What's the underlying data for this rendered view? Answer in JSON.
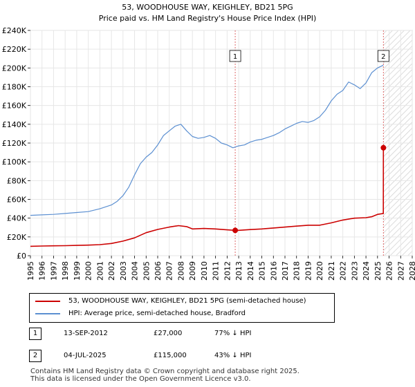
{
  "chart_data": {
    "type": "line",
    "title": "53, WOODHOUSE WAY, KEIGHLEY, BD21 5PG",
    "subtitle": "Price paid vs. HM Land Registry's House Price Index (HPI)",
    "xlabel": "",
    "ylabel": "",
    "xlim": [
      1995,
      2028
    ],
    "ylim": [
      0,
      240000
    ],
    "x_ticks": [
      1995,
      1996,
      1997,
      1998,
      1999,
      2000,
      2001,
      2002,
      2003,
      2004,
      2005,
      2006,
      2007,
      2008,
      2009,
      2010,
      2011,
      2012,
      2013,
      2014,
      2015,
      2016,
      2017,
      2018,
      2019,
      2020,
      2021,
      2022,
      2023,
      2024,
      2025,
      2026,
      2027,
      2028
    ],
    "y_ticks": [
      0,
      20000,
      40000,
      60000,
      80000,
      100000,
      120000,
      140000,
      160000,
      180000,
      200000,
      220000,
      240000
    ],
    "y_tick_labels": [
      "£0",
      "£20K",
      "£40K",
      "£60K",
      "£80K",
      "£100K",
      "£120K",
      "£140K",
      "£160K",
      "£180K",
      "£200K",
      "£220K",
      "£240K"
    ],
    "hatched_from": 2025.5,
    "series": [
      {
        "name": "53, WOODHOUSE WAY, KEIGHLEY, BD21 5PG (semi-detached house)",
        "color": "#cc0000",
        "x": [
          1995,
          1996,
          1997,
          1998,
          1999,
          2000,
          2001,
          2002,
          2003,
          2004,
          2005,
          2006,
          2007,
          2007.8,
          2008.5,
          2009,
          2010,
          2011,
          2012,
          2012.7,
          2013,
          2014,
          2015,
          2016,
          2017,
          2018,
          2019,
          2020,
          2021,
          2022,
          2023,
          2024,
          2024.5,
          2025,
          2025.5,
          2025.51
        ],
        "values": [
          10000,
          10300,
          10500,
          10700,
          11000,
          11300,
          11800,
          13000,
          15500,
          19000,
          24500,
          28000,
          30500,
          32000,
          31000,
          28500,
          29000,
          28500,
          27500,
          27000,
          27000,
          27800,
          28500,
          29500,
          30500,
          31500,
          32500,
          32500,
          35000,
          38000,
          40000,
          40500,
          41500,
          44000,
          45000,
          115000
        ]
      },
      {
        "name": "HPI: Average price, semi-detached house, Bradford",
        "color": "#5b8fd1",
        "x": [
          1995,
          1996,
          1997,
          1998,
          1999,
          2000,
          2001,
          2002,
          2002.5,
          2003,
          2003.5,
          2004,
          2004.5,
          2005,
          2005.5,
          2006,
          2006.5,
          2007,
          2007.5,
          2008,
          2008.5,
          2009,
          2009.5,
          2010,
          2010.5,
          2011,
          2011.5,
          2012,
          2012.5,
          2013,
          2013.5,
          2014,
          2014.5,
          2015,
          2015.5,
          2016,
          2016.5,
          2017,
          2017.5,
          2018,
          2018.5,
          2019,
          2019.5,
          2020,
          2020.5,
          2021,
          2021.5,
          2022,
          2022.5,
          2023,
          2023.5,
          2024,
          2024.5,
          2025,
          2025.5
        ],
        "values": [
          43000,
          43500,
          44000,
          45000,
          46000,
          47000,
          50000,
          54000,
          58000,
          64000,
          73000,
          86000,
          98000,
          105000,
          110000,
          118000,
          128000,
          133000,
          138000,
          140000,
          133000,
          127000,
          125000,
          126000,
          128000,
          125000,
          120000,
          118000,
          115000,
          117000,
          118000,
          121000,
          123000,
          124000,
          126000,
          128000,
          131000,
          135000,
          138000,
          141000,
          143000,
          142000,
          144000,
          148000,
          155000,
          165000,
          172000,
          176000,
          185000,
          182000,
          178000,
          184000,
          195000,
          200000,
          203000
        ]
      }
    ],
    "annotations": [
      {
        "label": "1",
        "x": 2012.7,
        "y": 27000
      },
      {
        "label": "2",
        "x": 2025.51,
        "y": 115000
      }
    ]
  },
  "legend": {
    "items": [
      {
        "label": "53, WOODHOUSE WAY, KEIGHLEY, BD21 5PG (semi-detached house)",
        "color": "#cc0000"
      },
      {
        "label": "HPI: Average price, semi-detached house, Bradford",
        "color": "#5b8fd1"
      }
    ]
  },
  "sales": [
    {
      "badge": "1",
      "date": "13-SEP-2012",
      "price": "£27,000",
      "hpi": "77% ↓ HPI"
    },
    {
      "badge": "2",
      "date": "04-JUL-2025",
      "price": "£115,000",
      "hpi": "43% ↓ HPI"
    }
  ],
  "footer": {
    "line1": "Contains HM Land Registry data © Crown copyright and database right 2025.",
    "line2": "This data is licensed under the Open Government Licence v3.0."
  }
}
